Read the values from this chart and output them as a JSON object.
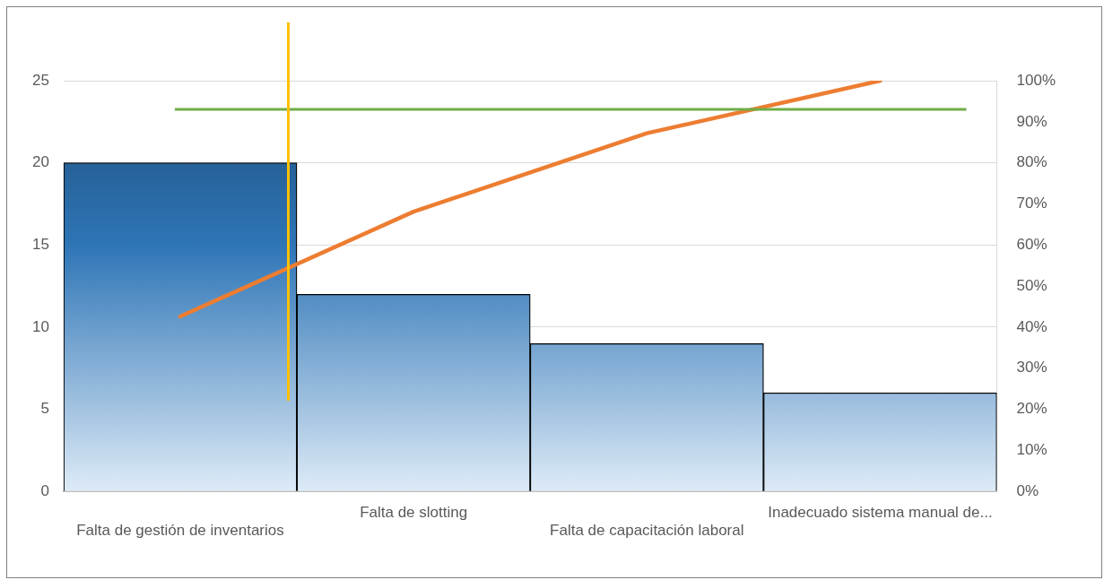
{
  "chart_data": {
    "type": "bar",
    "categories": [
      "Falta de gestión de inventarios",
      "Falta de slotting",
      "Falta de capacitación laboral",
      "Inadecuado sistema manual de..."
    ],
    "series": [
      {
        "color": "#2e75b6",
        "values": [
          20,
          12,
          9,
          6
        ]
      },
      {
        "type": "line",
        "axis": "y2",
        "color": "#ed7d31",
        "values": [
          42.6,
          68.1,
          87.2,
          100
        ]
      }
    ],
    "ylim": [
      0,
      25
    ],
    "yticks": [
      0,
      5,
      10,
      15,
      20,
      25
    ],
    "y2lim": [
      0,
      100
    ],
    "y2ticks": [
      {
        "value": 0,
        "label": "0%"
      },
      {
        "value": 10,
        "label": "10%"
      },
      {
        "value": 20,
        "label": "20%"
      },
      {
        "value": 30,
        "label": "30%"
      },
      {
        "value": 40,
        "label": "40%"
      },
      {
        "value": 50,
        "label": "50%"
      },
      {
        "value": 60,
        "label": "60%"
      },
      {
        "value": 70,
        "label": "70%"
      },
      {
        "value": 80,
        "label": "80%"
      },
      {
        "value": 90,
        "label": "90%"
      },
      {
        "value": 100,
        "label": "100%"
      }
    ],
    "ref_lines": [
      {
        "axis": "y2",
        "value": 93,
        "color": "#70ad47"
      }
    ],
    "grid": "y",
    "legend": false,
    "marker": "none",
    "line_style": "solid"
  }
}
